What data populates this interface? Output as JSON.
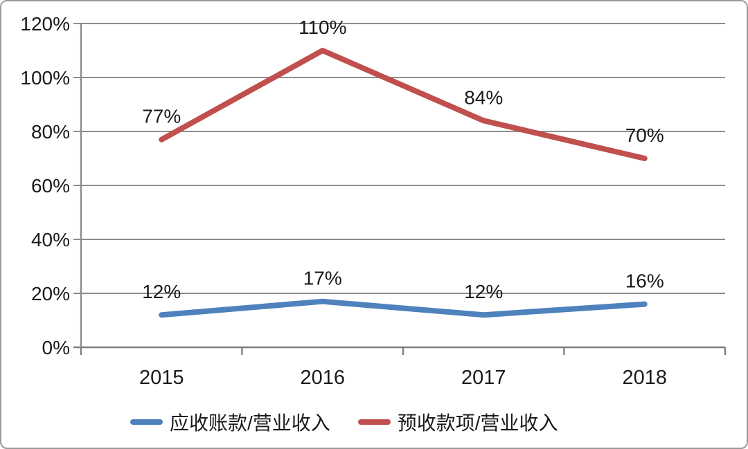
{
  "chart_data": {
    "type": "line",
    "categories": [
      "2015",
      "2016",
      "2017",
      "2018"
    ],
    "series": [
      {
        "name": "应收账款/营业收入",
        "color": "#4F81BD",
        "values": [
          12,
          17,
          12,
          16
        ],
        "labels": [
          "12%",
          "17%",
          "12%",
          "16%"
        ]
      },
      {
        "name": "预收款项/营业收入",
        "color": "#C0504D",
        "values": [
          77,
          110,
          84,
          70
        ],
        "labels": [
          "77%",
          "110%",
          "84%",
          "70%"
        ]
      }
    ],
    "title": "",
    "xlabel": "",
    "ylabel": "",
    "ylim": [
      0,
      120
    ],
    "ytick_step": 20,
    "ytick_labels": [
      "0%",
      "20%",
      "40%",
      "60%",
      "80%",
      "100%",
      "120%"
    ],
    "grid": "horizontal",
    "legend_position": "bottom"
  },
  "colors": {
    "gridline": "#8C8C8C",
    "axis": "#7F7F7F",
    "text": "#1A1A1A",
    "frame_border": "#999999",
    "background": "#FFFFFF"
  }
}
